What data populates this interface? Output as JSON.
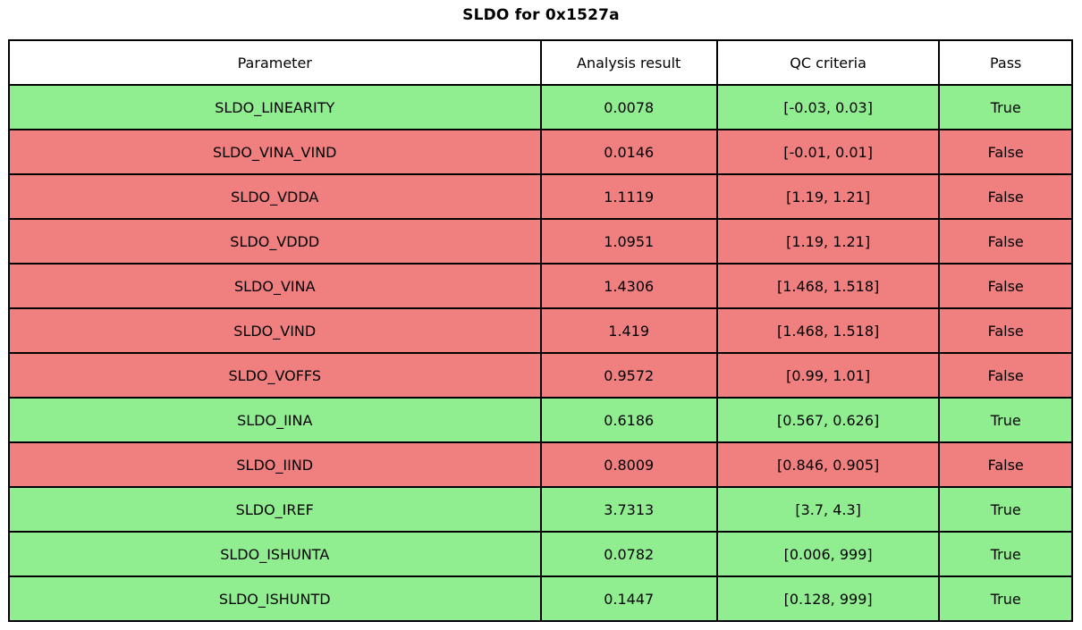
{
  "colors": {
    "pass_true": "#90EE90",
    "pass_false": "#F08080",
    "header_bg": "#FFFFFF",
    "border": "#000000",
    "text": "#000000"
  },
  "chart_data": {
    "type": "table",
    "title": "SLDO for 0x1527a",
    "columns": [
      "Parameter",
      "Analysis result",
      "QC criteria",
      "Pass"
    ],
    "rows": [
      {
        "parameter": "SLDO_LINEARITY",
        "result": "0.0078",
        "criteria": "[-0.03, 0.03]",
        "pass": "True"
      },
      {
        "parameter": "SLDO_VINA_VIND",
        "result": "0.0146",
        "criteria": "[-0.01, 0.01]",
        "pass": "False"
      },
      {
        "parameter": "SLDO_VDDA",
        "result": "1.1119",
        "criteria": "[1.19, 1.21]",
        "pass": "False"
      },
      {
        "parameter": "SLDO_VDDD",
        "result": "1.0951",
        "criteria": "[1.19, 1.21]",
        "pass": "False"
      },
      {
        "parameter": "SLDO_VINA",
        "result": "1.4306",
        "criteria": "[1.468, 1.518]",
        "pass": "False"
      },
      {
        "parameter": "SLDO_VIND",
        "result": "1.419",
        "criteria": "[1.468, 1.518]",
        "pass": "False"
      },
      {
        "parameter": "SLDO_VOFFS",
        "result": "0.9572",
        "criteria": "[0.99, 1.01]",
        "pass": "False"
      },
      {
        "parameter": "SLDO_IINA",
        "result": "0.6186",
        "criteria": "[0.567, 0.626]",
        "pass": "True"
      },
      {
        "parameter": "SLDO_IIND",
        "result": "0.8009",
        "criteria": "[0.846, 0.905]",
        "pass": "False"
      },
      {
        "parameter": "SLDO_IREF",
        "result": "3.7313",
        "criteria": "[3.7, 4.3]",
        "pass": "True"
      },
      {
        "parameter": "SLDO_ISHUNTA",
        "result": "0.0782",
        "criteria": "[0.006, 999]",
        "pass": "True"
      },
      {
        "parameter": "SLDO_ISHUNTD",
        "result": "0.1447",
        "criteria": "[0.128, 999]",
        "pass": "True"
      }
    ],
    "layout": {
      "column_width_fractions": [
        0.5,
        0.166,
        0.209,
        0.125
      ],
      "row_count": 12,
      "header_rows": 1
    }
  }
}
